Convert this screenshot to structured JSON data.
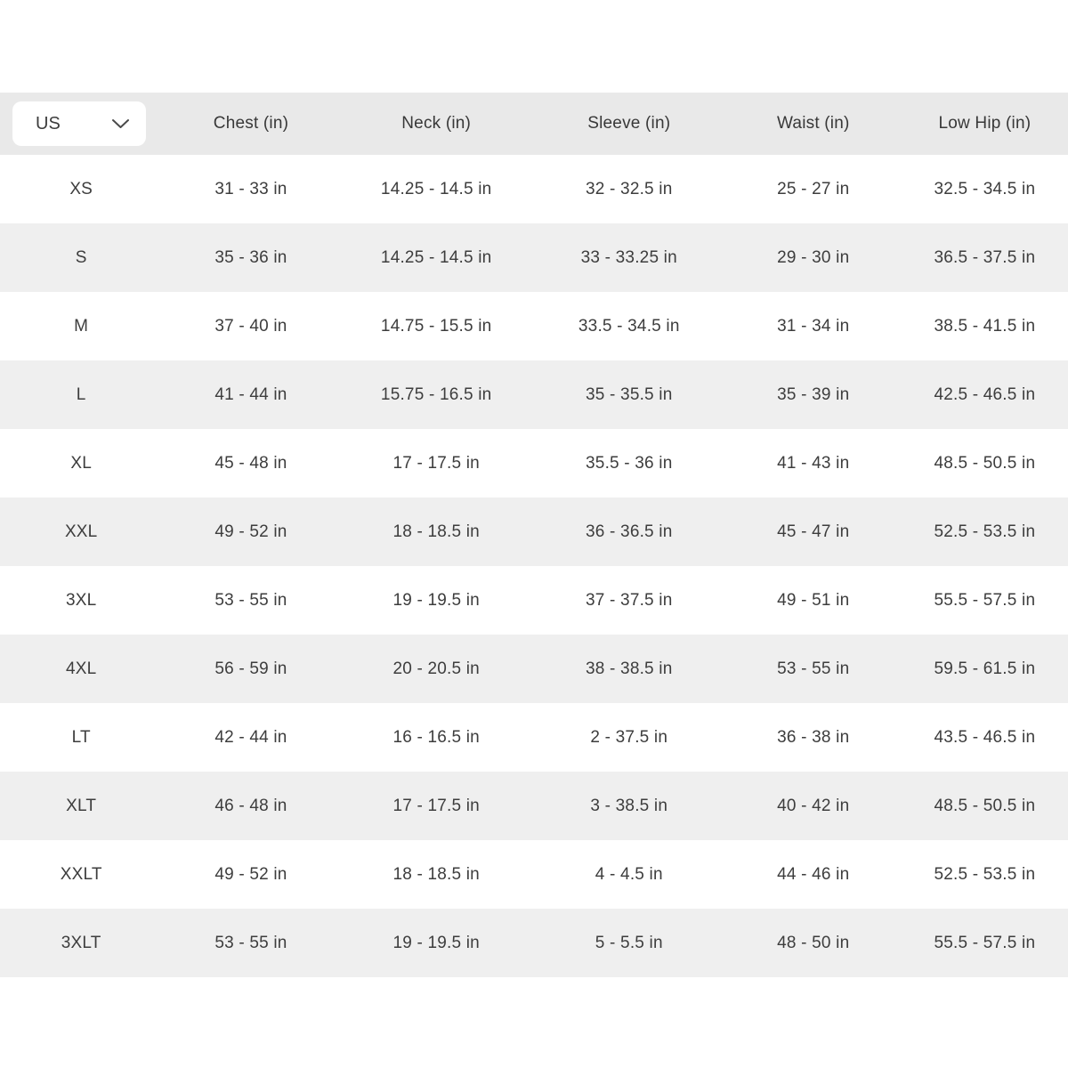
{
  "table": {
    "unit_selector": {
      "value": "US"
    },
    "columns": [
      "Chest (in)",
      "Neck (in)",
      "Sleeve (in)",
      "Waist (in)",
      "Low Hip (in)"
    ],
    "fields": [
      "size",
      "chest",
      "neck",
      "sleeve",
      "waist",
      "low_hip"
    ],
    "rows": [
      {
        "size": "XS",
        "chest": "31 - 33 in",
        "neck": "14.25 - 14.5 in",
        "sleeve": "32 - 32.5 in",
        "waist": "25 - 27 in",
        "low_hip": "32.5 - 34.5 in"
      },
      {
        "size": "S",
        "chest": "35 - 36 in",
        "neck": "14.25 - 14.5 in",
        "sleeve": "33 - 33.25 in",
        "waist": "29 - 30 in",
        "low_hip": "36.5 - 37.5 in"
      },
      {
        "size": "M",
        "chest": "37 - 40 in",
        "neck": "14.75 - 15.5 in",
        "sleeve": "33.5 - 34.5 in",
        "waist": "31 - 34 in",
        "low_hip": "38.5 - 41.5 in"
      },
      {
        "size": "L",
        "chest": "41 - 44 in",
        "neck": "15.75 - 16.5 in",
        "sleeve": "35 - 35.5 in",
        "waist": "35 - 39 in",
        "low_hip": "42.5 - 46.5 in"
      },
      {
        "size": "XL",
        "chest": "45 - 48 in",
        "neck": "17 - 17.5 in",
        "sleeve": "35.5 - 36 in",
        "waist": "41 - 43 in",
        "low_hip": "48.5 - 50.5 in"
      },
      {
        "size": "XXL",
        "chest": "49 - 52 in",
        "neck": "18 - 18.5 in",
        "sleeve": "36 - 36.5 in",
        "waist": "45 - 47 in",
        "low_hip": "52.5 - 53.5 in"
      },
      {
        "size": "3XL",
        "chest": "53 - 55 in",
        "neck": "19 - 19.5 in",
        "sleeve": "37 - 37.5 in",
        "waist": "49 - 51 in",
        "low_hip": "55.5 - 57.5 in"
      },
      {
        "size": "4XL",
        "chest": "56 - 59 in",
        "neck": "20 - 20.5 in",
        "sleeve": "38 - 38.5 in",
        "waist": "53 - 55 in",
        "low_hip": "59.5 - 61.5 in"
      },
      {
        "size": "LT",
        "chest": "42 - 44 in",
        "neck": "16 - 16.5 in",
        "sleeve": "2 - 37.5 in",
        "waist": "36 - 38 in",
        "low_hip": "43.5 - 46.5 in"
      },
      {
        "size": "XLT",
        "chest": "46 - 48 in",
        "neck": "17 - 17.5 in",
        "sleeve": "3 - 38.5 in",
        "waist": "40 - 42 in",
        "low_hip": "48.5 - 50.5 in"
      },
      {
        "size": "XXLT",
        "chest": "49 - 52 in",
        "neck": "18 - 18.5 in",
        "sleeve": "4 - 4.5 in",
        "waist": "44 - 46 in",
        "low_hip": "52.5 - 53.5 in"
      },
      {
        "size": "3XLT",
        "chest": "53 - 55 in",
        "neck": "19 - 19.5 in",
        "sleeve": "5 - 5.5 in",
        "waist": "48 - 50 in",
        "low_hip": "55.5 - 57.5 in"
      }
    ]
  },
  "colors": {
    "header_bg": "#e9e9e9",
    "stripe_bg": "#efefef",
    "text": "#3d3d3d",
    "dropdown_bg": "#ffffff"
  },
  "icons": {
    "chevron_down": "chevron-down"
  }
}
